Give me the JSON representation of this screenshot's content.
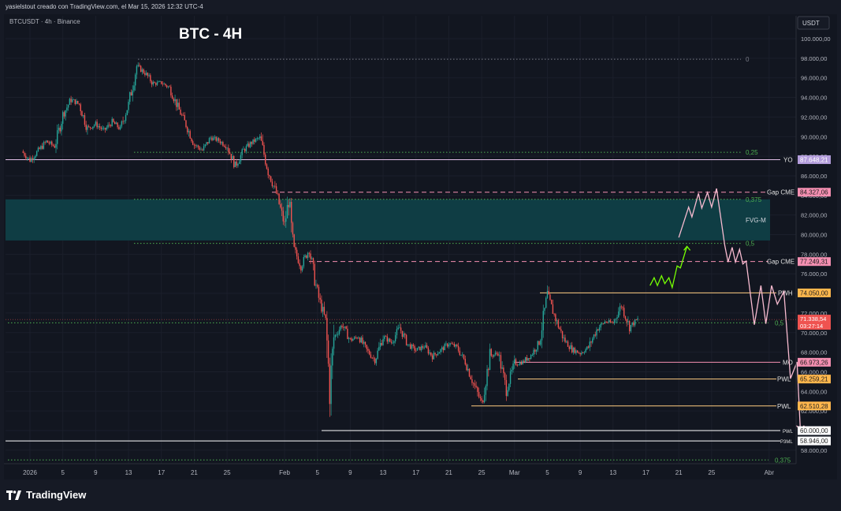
{
  "header": {
    "creator_text": "yasielstout creado con TradingView.com, el Mar 15, 2026 12:32 UTC-4"
  },
  "legend": {
    "symbol_text": "BTCUSDT · 4h · Binance"
  },
  "chart_title": "BTC - 4H",
  "branding": {
    "logo_text": "TradingView",
    "logo_icon": "tradingview-logo-icon"
  },
  "currency_button": "USDT",
  "chart_data": {
    "type": "candlestick",
    "title": "BTC - 4H",
    "symbol": "BTCUSDT",
    "interval": "4h",
    "exchange": "Binance",
    "ylim": [
      56000,
      101500
    ],
    "y_ticks": [
      "100.000,00",
      "98.000,00",
      "96.000,00",
      "94.000,00",
      "92.000,00",
      "90.000,00",
      "88.000,00",
      "86.000,00",
      "84.000,00",
      "82.000,00",
      "80.000,00",
      "78.000,00",
      "76.000,00",
      "74.000,00",
      "72.000,00",
      "70.000,00",
      "68.000,00",
      "66.000,00",
      "64.000,00",
      "62.000,00",
      "60.000,00",
      "58.000,00"
    ],
    "y_tick_values": [
      100000,
      98000,
      96000,
      94000,
      92000,
      90000,
      88000,
      86000,
      84000,
      82000,
      80000,
      78000,
      76000,
      74000,
      72000,
      70000,
      68000,
      66000,
      64000,
      62000,
      60000,
      58000
    ],
    "x_ticks": [
      "2026",
      "5",
      "9",
      "13",
      "17",
      "21",
      "25",
      "Feb",
      "5",
      "9",
      "13",
      "17",
      "21",
      "25",
      "Mar",
      "5",
      "9",
      "13",
      "17",
      "21",
      "25",
      "Abr"
    ],
    "x_tick_days": [
      0,
      4,
      8,
      12,
      16,
      20,
      24,
      31,
      35,
      39,
      43,
      47,
      51,
      55,
      59,
      63,
      67,
      71,
      75,
      79,
      83,
      90
    ],
    "price_path": [
      [
        -1,
        88500
      ],
      [
        0,
        87600
      ],
      [
        2,
        89500
      ],
      [
        3,
        89000
      ],
      [
        4,
        92200
      ],
      [
        5,
        93800
      ],
      [
        6,
        93300
      ],
      [
        7,
        90800
      ],
      [
        8,
        91300
      ],
      [
        9,
        90600
      ],
      [
        10,
        91500
      ],
      [
        11,
        90800
      ],
      [
        12,
        93300
      ],
      [
        13,
        97200
      ],
      [
        14,
        96500
      ],
      [
        15,
        95400
      ],
      [
        16,
        95500
      ],
      [
        17,
        95000
      ],
      [
        18,
        93000
      ],
      [
        19,
        91200
      ],
      [
        20,
        89200
      ],
      [
        21,
        88600
      ],
      [
        22,
        89900
      ],
      [
        23,
        89600
      ],
      [
        24,
        89000
      ],
      [
        25,
        87000
      ],
      [
        26,
        88600
      ],
      [
        27,
        89400
      ],
      [
        28,
        89900
      ],
      [
        29,
        86500
      ],
      [
        30,
        84200
      ],
      [
        31,
        81000
      ],
      [
        31.5,
        83500
      ],
      [
        32,
        78800
      ],
      [
        33,
        76800
      ],
      [
        34,
        78500
      ],
      [
        35,
        74000
      ],
      [
        36,
        71200
      ],
      [
        36.5,
        64200
      ],
      [
        37,
        69500
      ],
      [
        38,
        70800
      ],
      [
        39,
        69200
      ],
      [
        40,
        69600
      ],
      [
        41,
        68200
      ],
      [
        42,
        67200
      ],
      [
        43,
        69600
      ],
      [
        44,
        69000
      ],
      [
        45,
        70500
      ],
      [
        46,
        68800
      ],
      [
        47,
        68200
      ],
      [
        48,
        68600
      ],
      [
        49,
        67600
      ],
      [
        50,
        68200
      ],
      [
        51,
        68900
      ],
      [
        52,
        68500
      ],
      [
        53,
        67000
      ],
      [
        54,
        64800
      ],
      [
        55,
        62800
      ],
      [
        56,
        67600
      ],
      [
        57,
        67900
      ],
      [
        58,
        64200
      ],
      [
        59,
        66800
      ],
      [
        60,
        67000
      ],
      [
        61,
        67700
      ],
      [
        62,
        69000
      ],
      [
        63,
        73800
      ],
      [
        64,
        71400
      ],
      [
        65,
        69300
      ],
      [
        66,
        68300
      ],
      [
        67,
        67900
      ],
      [
        68,
        68500
      ],
      [
        69,
        70300
      ],
      [
        70,
        71100
      ],
      [
        71,
        71000
      ],
      [
        72,
        72800
      ],
      [
        73,
        70600
      ],
      [
        74,
        71338
      ]
    ],
    "current_price": 71338.54,
    "countdown": "03:27:14",
    "levels": [
      {
        "name": "YO",
        "value": 87648.21,
        "label": "87.648,21",
        "color": "#e1bee7",
        "style": "solid"
      },
      {
        "name": "Gap CME",
        "value": 84327.06,
        "label": "84.327,06",
        "color": "#f48fb1",
        "style": "dashed"
      },
      {
        "name": "Gap CME",
        "value": 77249.31,
        "label": "77.249,31",
        "color": "#f48fb1",
        "style": "dashed"
      },
      {
        "name": "PWH",
        "value": 74050.0,
        "label": "74.050,00",
        "color": "#ffcc80",
        "style": "solid"
      },
      {
        "name": "MO",
        "value": 66973.26,
        "label": "66.973,26",
        "color": "#f48fb1",
        "style": "solid"
      },
      {
        "name": "PWL",
        "value": 65259.21,
        "label": "65.259,21",
        "color": "#ffcc80",
        "style": "solid"
      },
      {
        "name": "PWL",
        "value": 62510.28,
        "label": "62.510,28",
        "color": "#ffcc80",
        "style": "solid"
      },
      {
        "name": "PWL",
        "value": 60000.0,
        "label": "60.000,00",
        "color": "#ffffff",
        "style": "solid"
      },
      {
        "name": "P3ML",
        "value": 58946.0,
        "label": "58.946,00",
        "color": "#ffffff",
        "style": "solid"
      }
    ],
    "fib_levels": [
      {
        "label": "0",
        "value": 97900
      },
      {
        "label": "0,25",
        "value": 88400
      },
      {
        "label": "0,375",
        "value": 83600
      },
      {
        "label": "0,5",
        "value": 79100
      },
      {
        "label": "0,5",
        "value": 71000
      },
      {
        "label": "0,375",
        "value": 57000
      }
    ],
    "zone": {
      "label": "FVG-M",
      "low": 79400,
      "high": 83600
    },
    "green_projection": [
      [
        75.5,
        74800
      ],
      [
        76,
        75600
      ],
      [
        76.4,
        74800
      ],
      [
        76.9,
        75800
      ],
      [
        77.3,
        75000
      ],
      [
        77.8,
        75600
      ],
      [
        78.2,
        74600
      ],
      [
        78.8,
        76800
      ],
      [
        79.2,
        76600
      ],
      [
        80,
        78800
      ]
    ],
    "pink_projection": [
      [
        79,
        79700
      ],
      [
        80.2,
        82800
      ],
      [
        80.6,
        81800
      ],
      [
        81.4,
        84200
      ],
      [
        81.8,
        82700
      ],
      [
        82.5,
        84300
      ],
      [
        83,
        82800
      ],
      [
        83.6,
        84700
      ],
      [
        84.6,
        78900
      ],
      [
        85,
        77200
      ],
      [
        85.5,
        78700
      ],
      [
        85.9,
        77200
      ],
      [
        86.4,
        78500
      ],
      [
        86.8,
        77000
      ],
      [
        87.2,
        77300
      ],
      [
        88.2,
        70800
      ],
      [
        89,
        74800
      ],
      [
        89.6,
        70900
      ],
      [
        90.3,
        74800
      ],
      [
        91,
        72900
      ],
      [
        91.8,
        74200
      ],
      [
        92.6,
        65300
      ],
      [
        93.4,
        67000
      ],
      [
        93.8,
        60100
      ]
    ]
  }
}
